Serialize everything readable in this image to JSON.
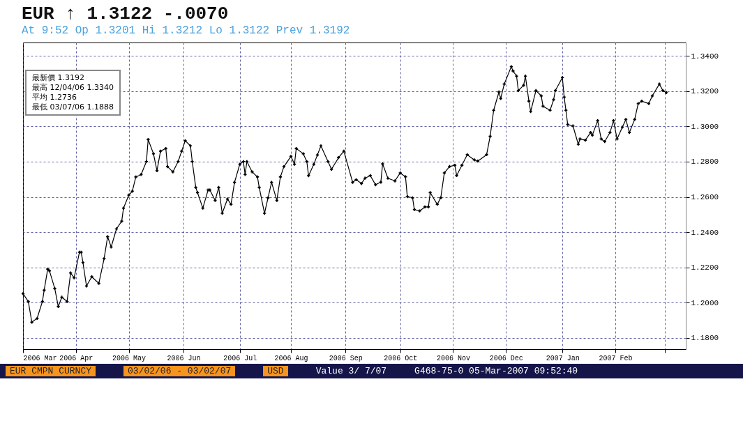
{
  "chart_data": {
    "type": "line",
    "title": "EUR ↑ 1.3122 -.0070",
    "subtitle": "At 9:52 Op 1.3201 Hi 1.3212 Lo 1.3122 Prev 1.3192",
    "annotations": [
      "最新價 1.3192",
      "最高 12/04/06 1.3340",
      "平均 1.2736",
      "最低 03/07/06 1.1888",
      "EUR CMPN CURNCY",
      "03/02/06 - 03/02/07",
      "USD",
      "Value 3/ 7/07",
      "G468-75-0 05-Mar-2007 09:52:40"
    ],
    "x": [
      "2006-03-02",
      "2006-03-05",
      "2006-03-07",
      "2006-03-10",
      "2006-03-13",
      "2006-03-14",
      "2006-03-16",
      "2006-03-17",
      "2006-03-20",
      "2006-03-22",
      "2006-03-24",
      "2006-03-27",
      "2006-03-29",
      "2006-03-31",
      "2006-04-03",
      "2006-04-04",
      "2006-04-05",
      "2006-04-07",
      "2006-04-10",
      "2006-04-14",
      "2006-04-17",
      "2006-04-19",
      "2006-04-21",
      "2006-04-24",
      "2006-04-27",
      "2006-04-28",
      "2006-05-01",
      "2006-05-03",
      "2006-05-05",
      "2006-05-08",
      "2006-05-11",
      "2006-05-12",
      "2006-05-15",
      "2006-05-17",
      "2006-05-19",
      "2006-05-22",
      "2006-05-23",
      "2006-05-26",
      "2006-05-29",
      "2006-05-31",
      "2006-06-02",
      "2006-06-05",
      "2006-06-06",
      "2006-06-08",
      "2006-06-09",
      "2006-06-12",
      "2006-06-15",
      "2006-06-16",
      "2006-06-19",
      "2006-06-21",
      "2006-06-23",
      "2006-06-26",
      "2006-06-28",
      "2006-06-30",
      "2006-07-03",
      "2006-07-05",
      "2006-07-06",
      "2006-07-07",
      "2006-07-10",
      "2006-07-13",
      "2006-07-14",
      "2006-07-17",
      "2006-07-19",
      "2006-07-21",
      "2006-07-24",
      "2006-07-26",
      "2006-07-28",
      "2006-08-01",
      "2006-08-03",
      "2006-08-04",
      "2006-08-08",
      "2006-08-10",
      "2006-08-11",
      "2006-08-14",
      "2006-08-16",
      "2006-08-18",
      "2006-08-22",
      "2006-08-24",
      "2006-08-28",
      "2006-08-31",
      "2006-09-05",
      "2006-09-07",
      "2006-09-10",
      "2006-09-12",
      "2006-09-15",
      "2006-09-18",
      "2006-09-21",
      "2006-09-22",
      "2006-09-25",
      "2006-09-29",
      "2006-10-02",
      "2006-10-05",
      "2006-10-06",
      "2006-10-09",
      "2006-10-10",
      "2006-10-13",
      "2006-10-16",
      "2006-10-18",
      "2006-10-19",
      "2006-10-23",
      "2006-10-25",
      "2006-10-27",
      "2006-10-30",
      "2006-11-02",
      "2006-11-03",
      "2006-11-06",
      "2006-11-09",
      "2006-11-13",
      "2006-11-15",
      "2006-11-20",
      "2006-11-22",
      "2006-11-24",
      "2006-11-27",
      "2006-11-28",
      "2006-11-30",
      "2006-12-04",
      "2006-12-05",
      "2006-12-07",
      "2006-12-08",
      "2006-12-11",
      "2006-12-12",
      "2006-12-14",
      "2006-12-15",
      "2006-12-18",
      "2006-12-21",
      "2006-12-22",
      "2006-12-26",
      "2006-12-28",
      "2006-12-29",
      "2007-01-02",
      "2007-01-03",
      "2007-01-04",
      "2007-01-05",
      "2007-01-08",
      "2007-01-11",
      "2007-01-12",
      "2007-01-15",
      "2007-01-18",
      "2007-01-19",
      "2007-01-22",
      "2007-01-24",
      "2007-01-26",
      "2007-01-29",
      "2007-01-31",
      "2007-02-02",
      "2007-02-05",
      "2007-02-07",
      "2007-02-09",
      "2007-02-12",
      "2007-02-14",
      "2007-02-16",
      "2007-02-20",
      "2007-02-22",
      "2007-02-26",
      "2007-02-28",
      "2007-03-02"
    ],
    "series": [
      {
        "color": "#000000",
        "values": [
          1.205,
          1.2006,
          1.1888,
          1.191,
          1.2006,
          1.207,
          1.219,
          1.218,
          1.208,
          1.1977,
          1.203,
          1.2006,
          1.2168,
          1.214,
          1.2286,
          1.2286,
          1.2227,
          1.2094,
          1.2146,
          1.2109,
          1.2249,
          1.2374,
          1.2315,
          1.2418,
          1.2462,
          1.2536,
          1.261,
          1.2632,
          1.2713,
          1.2727,
          1.2801,
          1.2926,
          1.2845,
          1.2749,
          1.286,
          1.2875,
          1.2772,
          1.2742,
          1.2801,
          1.286,
          1.2919,
          1.289,
          1.2801,
          1.2654,
          1.2624,
          1.2536,
          1.2639,
          1.2639,
          1.258,
          1.2654,
          1.2507,
          1.2588,
          1.2558,
          1.2683,
          1.2786,
          1.2801,
          1.2727,
          1.2801,
          1.2742,
          1.2713,
          1.2654,
          1.2507,
          1.2595,
          1.2683,
          1.258,
          1.2713,
          1.2772,
          1.283,
          1.2786,
          1.2875,
          1.2845,
          1.2801,
          1.272,
          1.2786,
          1.2838,
          1.289,
          1.2801,
          1.2757,
          1.2823,
          1.286,
          1.2683,
          1.2698,
          1.2676,
          1.2706,
          1.2721,
          1.2669,
          1.2684,
          1.2788,
          1.2706,
          1.2691,
          1.2736,
          1.2714,
          1.2602,
          1.2595,
          1.2528,
          1.252,
          1.2543,
          1.2543,
          1.2624,
          1.2558,
          1.2595,
          1.2736,
          1.2773,
          1.278,
          1.2721,
          1.278,
          1.284,
          1.281,
          1.2803,
          1.284,
          1.2944,
          1.3092,
          1.3196,
          1.3159,
          1.3241,
          1.334,
          1.3315,
          1.3286,
          1.3204,
          1.3234,
          1.3286,
          1.3144,
          1.3085,
          1.3204,
          1.3174,
          1.3115,
          1.3092,
          1.3152,
          1.3204,
          1.3278,
          1.3167,
          1.3092,
          1.3011,
          1.3003,
          1.2899,
          1.2929,
          1.2922,
          1.2966,
          1.2951,
          1.3033,
          1.2929,
          1.2914,
          1.2966,
          1.3033,
          1.2929,
          1.2996,
          1.304,
          1.2966,
          1.304,
          1.313,
          1.3144,
          1.313,
          1.3174,
          1.3241,
          1.3204,
          1.3192
        ]
      }
    ],
    "xlim": [
      "2006-03-02",
      "2007-03-13"
    ],
    "xticks": [
      {
        "value": "2006-03-02",
        "label": "2006 Mar"
      },
      {
        "value": "2006-04-01",
        "label": "2006 Apr"
      },
      {
        "value": "2006-05-01",
        "label": "2006 May"
      },
      {
        "value": "2006-06-01",
        "label": "2006 Jun"
      },
      {
        "value": "2006-07-03",
        "label": "2006 Jul"
      },
      {
        "value": "2006-08-01",
        "label": "2006 Aug"
      },
      {
        "value": "2006-09-01",
        "label": "2006 Sep"
      },
      {
        "value": "2006-10-02",
        "label": "2006 Oct"
      },
      {
        "value": "2006-11-01",
        "label": "2006 Nov"
      },
      {
        "value": "2006-12-01",
        "label": "2006 Dec"
      },
      {
        "value": "2007-01-02",
        "label": "2007 Jan"
      },
      {
        "value": "2007-02-01",
        "label": "2007 Feb"
      },
      {
        "value": "2007-03-01",
        "label": null
      }
    ],
    "ylim": [
      1.1735,
      1.3477
    ],
    "yticks": [
      {
        "value": 1.18,
        "label": "1.1800"
      },
      {
        "value": 1.2,
        "label": "1.2000"
      },
      {
        "value": 1.22,
        "label": "1.2200"
      },
      {
        "value": 1.24,
        "label": "1.2400"
      },
      {
        "value": 1.26,
        "label": "1.2600"
      },
      {
        "value": 1.28,
        "label": "1.2800"
      },
      {
        "value": 1.3,
        "label": "1.3000"
      },
      {
        "value": 1.32,
        "label": "1.3200"
      },
      {
        "value": 1.34,
        "label": "1.3400"
      }
    ],
    "grid": true,
    "marker": "cross",
    "line_style": "solid"
  }
}
